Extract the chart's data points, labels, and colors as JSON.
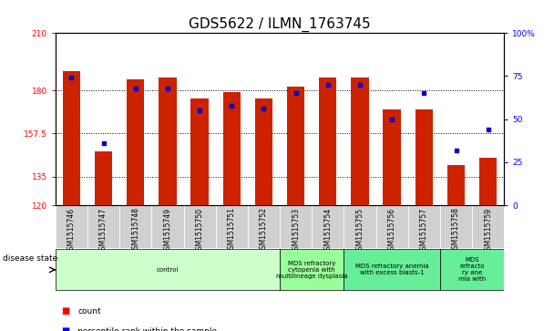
{
  "title": "GDS5622 / ILMN_1763745",
  "samples": [
    "GSM1515746",
    "GSM1515747",
    "GSM1515748",
    "GSM1515749",
    "GSM1515750",
    "GSM1515751",
    "GSM1515752",
    "GSM1515753",
    "GSM1515754",
    "GSM1515755",
    "GSM1515756",
    "GSM1515757",
    "GSM1515758",
    "GSM1515759"
  ],
  "counts": [
    190,
    148,
    186,
    187,
    176,
    179,
    176,
    182,
    187,
    187,
    170,
    170,
    141,
    145
  ],
  "percentile_ranks": [
    74,
    36,
    68,
    68,
    55,
    58,
    56,
    65,
    70,
    70,
    50,
    65,
    32,
    44
  ],
  "ymin": 120,
  "ymax": 210,
  "yticks": [
    120,
    135,
    157.5,
    180,
    210
  ],
  "ytick_labels": [
    "120",
    "135",
    "157.5",
    "180",
    "210"
  ],
  "right_yticks": [
    0,
    25,
    50,
    75,
    100
  ],
  "right_ytick_labels": [
    "0",
    "25",
    "50",
    "75",
    "100%"
  ],
  "bar_color": "#cc2200",
  "dot_color": "#0000cc",
  "background_color": "#ffffff",
  "plot_bg_color": "#ffffff",
  "disease_states": [
    {
      "label": "control",
      "start": 0,
      "end": 7,
      "color": "#ccffcc"
    },
    {
      "label": "MDS refractory\ncytopenia with\nmultilineage dysplasia",
      "start": 7,
      "end": 9,
      "color": "#99ff99"
    },
    {
      "label": "MDS refractory anemia\nwith excess blasts-1",
      "start": 9,
      "end": 12,
      "color": "#66ee99"
    },
    {
      "label": "MDS\nrefracto\nry ane\nmia with",
      "start": 12,
      "end": 14,
      "color": "#66ee99"
    }
  ],
  "disease_state_label": "disease state",
  "legend_count_label": "count",
  "legend_percentile_label": "percentile rank within the sample",
  "title_fontsize": 11,
  "tick_fontsize": 6.5,
  "bar_width": 0.55,
  "xtick_bg": "#d0d0d0"
}
